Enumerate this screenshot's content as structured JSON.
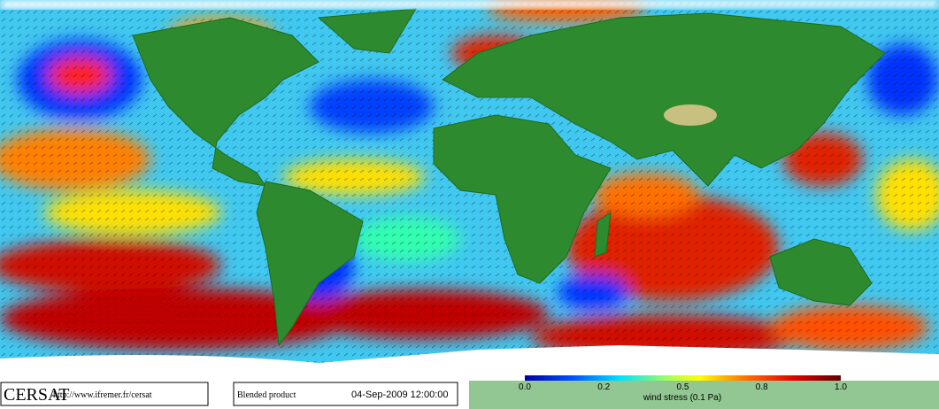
{
  "footer": {
    "brand": "CERSAT",
    "url": "http://www.ifremer.fr/cersat",
    "product": "Blended product",
    "date": "04-Sep-2009 12:00:00"
  },
  "colorbar": {
    "tick_labels": [
      "0.0",
      "0.2",
      "0.5",
      "0.8",
      "1.0"
    ],
    "label": "wind stress (0.1 Pa)"
  }
}
